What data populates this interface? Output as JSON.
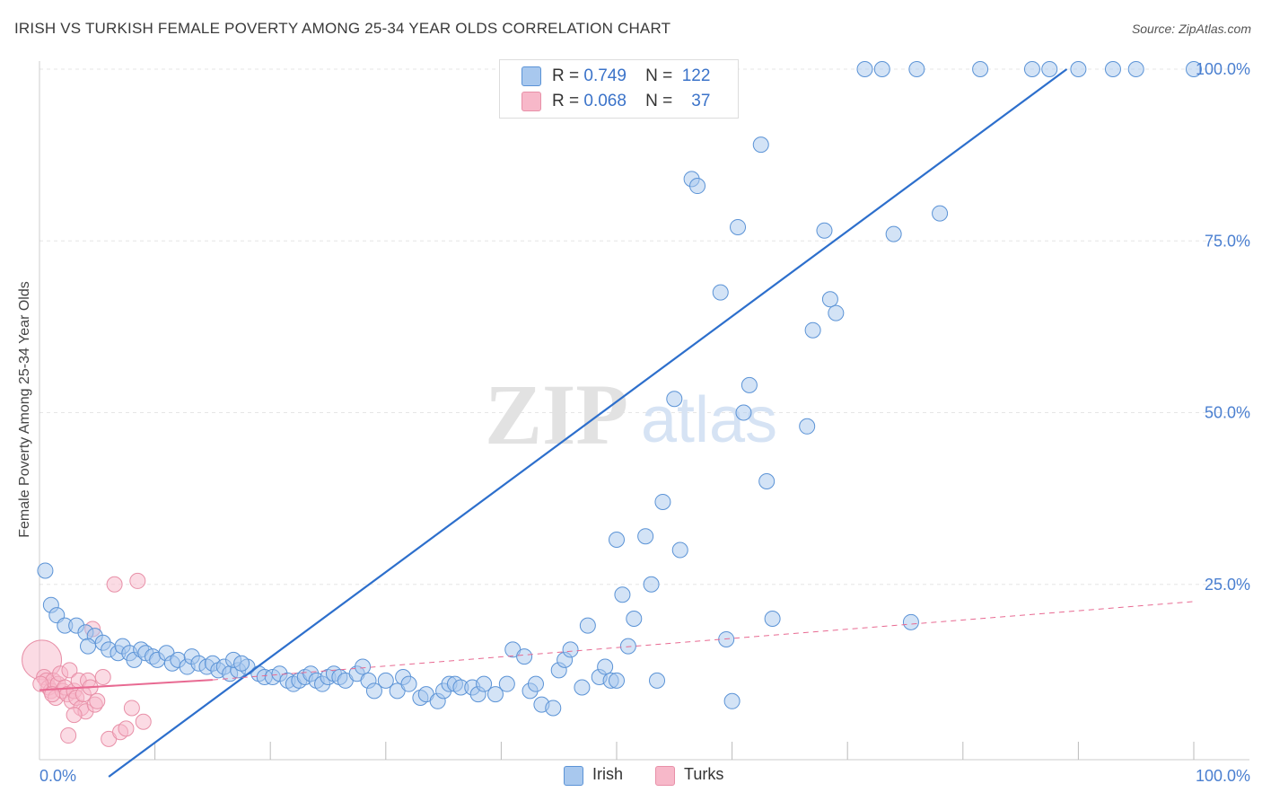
{
  "header": {
    "title": "IRISH VS TURKISH FEMALE POVERTY AMONG 25-34 YEAR OLDS CORRELATION CHART",
    "source": "Source: ZipAtlas.com"
  },
  "watermark": {
    "zip": "ZIP",
    "atlas": "atlas"
  },
  "legend": {
    "rows": [
      {
        "r_label": "R =",
        "r_value": "0.749",
        "n_label": "N =",
        "n_value": "122"
      },
      {
        "r_label": "R =",
        "r_value": "0.068",
        "n_label": "N =",
        "n_value": "37"
      }
    ]
  },
  "bottom_legend": {
    "irish": "Irish",
    "turks": "Turks"
  },
  "colors": {
    "irish_fill": "#a8c8ee",
    "irish_stroke": "#5b93d6",
    "irish_line": "#2d6fcc",
    "turks_fill": "#f7b8c9",
    "turks_stroke": "#e890a8",
    "turks_line": "#e86a92",
    "axis_text": "#4a7fd0",
    "grid": "#e6e6e6"
  },
  "chart_data": {
    "type": "scatter",
    "title": "IRISH VS TURKISH FEMALE POVERTY AMONG 25-34 YEAR OLDS CORRELATION CHART",
    "xlabel": "",
    "ylabel": "Female Poverty Among 25-34 Year Olds",
    "xlim": [
      0,
      100
    ],
    "ylim": [
      0,
      102
    ],
    "x_tick_labels": [
      {
        "value": 0,
        "label": "0.0%"
      },
      {
        "value": 100,
        "label": "100.0%"
      }
    ],
    "y_tick_labels": [
      {
        "value": 25,
        "label": "25.0%"
      },
      {
        "value": 50,
        "label": "50.0%"
      },
      {
        "value": 75,
        "label": "75.0%"
      },
      {
        "value": 100,
        "label": "100.0%"
      }
    ],
    "x_minor_ticks": [
      10,
      20,
      30,
      40,
      50,
      60,
      70,
      80,
      90,
      100
    ],
    "grid": true,
    "series": [
      {
        "name": "Irish",
        "r": 0.749,
        "n": 122,
        "trend": {
          "x": [
            6.0,
            89.0
          ],
          "y": [
            -3.0,
            100.0
          ],
          "style": "solid"
        },
        "points": [
          [
            0.5,
            27.0
          ],
          [
            1.0,
            22.0
          ],
          [
            1.5,
            20.5
          ],
          [
            2.2,
            19.0
          ],
          [
            3.2,
            19.0
          ],
          [
            4.0,
            18.0
          ],
          [
            4.8,
            17.5
          ],
          [
            4.2,
            16.0
          ],
          [
            5.5,
            16.5
          ],
          [
            6.0,
            15.5
          ],
          [
            6.8,
            15.0
          ],
          [
            7.2,
            16.0
          ],
          [
            7.8,
            15.0
          ],
          [
            8.2,
            14.0
          ],
          [
            8.8,
            15.5
          ],
          [
            9.2,
            15.0
          ],
          [
            9.8,
            14.5
          ],
          [
            10.2,
            14.0
          ],
          [
            11.0,
            15.0
          ],
          [
            11.5,
            13.5
          ],
          [
            12.0,
            14.0
          ],
          [
            12.8,
            13.0
          ],
          [
            13.2,
            14.5
          ],
          [
            13.8,
            13.5
          ],
          [
            14.5,
            13.0
          ],
          [
            15.0,
            13.5
          ],
          [
            15.5,
            12.5
          ],
          [
            16.0,
            13.0
          ],
          [
            16.5,
            12.0
          ],
          [
            17.2,
            12.5
          ],
          [
            18.0,
            13.0
          ],
          [
            16.8,
            14.0
          ],
          [
            17.5,
            13.5
          ],
          [
            19.0,
            12.0
          ],
          [
            19.5,
            11.5
          ],
          [
            20.2,
            11.5
          ],
          [
            20.8,
            12.0
          ],
          [
            21.5,
            11.0
          ],
          [
            22.0,
            10.5
          ],
          [
            22.5,
            11.0
          ],
          [
            23.0,
            11.5
          ],
          [
            23.5,
            12.0
          ],
          [
            24.0,
            11.0
          ],
          [
            24.5,
            10.5
          ],
          [
            25.0,
            11.5
          ],
          [
            25.5,
            12.0
          ],
          [
            26.0,
            11.5
          ],
          [
            26.5,
            11.0
          ],
          [
            27.5,
            12.0
          ],
          [
            28.0,
            13.0
          ],
          [
            28.5,
            11.0
          ],
          [
            29.0,
            9.5
          ],
          [
            30.0,
            11.0
          ],
          [
            31.0,
            9.5
          ],
          [
            31.5,
            11.5
          ],
          [
            32.0,
            10.5
          ],
          [
            33.0,
            8.5
          ],
          [
            33.5,
            9.0
          ],
          [
            34.5,
            8.0
          ],
          [
            35.0,
            9.5
          ],
          [
            35.5,
            10.5
          ],
          [
            36.0,
            10.5
          ],
          [
            36.5,
            10.0
          ],
          [
            37.5,
            10.0
          ],
          [
            38.0,
            9.0
          ],
          [
            38.5,
            10.5
          ],
          [
            39.5,
            9.0
          ],
          [
            40.5,
            10.5
          ],
          [
            41.0,
            15.5
          ],
          [
            42.0,
            14.5
          ],
          [
            42.5,
            9.5
          ],
          [
            43.0,
            10.5
          ],
          [
            43.5,
            7.5
          ],
          [
            44.5,
            7.0
          ],
          [
            45.0,
            12.5
          ],
          [
            45.5,
            14.0
          ],
          [
            46.0,
            15.5
          ],
          [
            47.0,
            10.0
          ],
          [
            47.5,
            19.0
          ],
          [
            48.5,
            11.5
          ],
          [
            49.0,
            13.0
          ],
          [
            49.5,
            11.0
          ],
          [
            50.0,
            11.0
          ],
          [
            50.0,
            31.5
          ],
          [
            50.5,
            23.5
          ],
          [
            51.0,
            16.0
          ],
          [
            51.5,
            20.0
          ],
          [
            52.5,
            32.0
          ],
          [
            53.0,
            25.0
          ],
          [
            53.5,
            11.0
          ],
          [
            54.0,
            37.0
          ],
          [
            55.0,
            52.0
          ],
          [
            55.5,
            30.0
          ],
          [
            56.5,
            84.0
          ],
          [
            57.0,
            83.0
          ],
          [
            59.0,
            67.5
          ],
          [
            59.5,
            17.0
          ],
          [
            60.0,
            8.0
          ],
          [
            60.5,
            77.0
          ],
          [
            61.0,
            50.0
          ],
          [
            61.5,
            54.0
          ],
          [
            62.5,
            89.0
          ],
          [
            63.0,
            40.0
          ],
          [
            63.5,
            20.0
          ],
          [
            66.5,
            48.0
          ],
          [
            67.0,
            62.0
          ],
          [
            68.0,
            76.5
          ],
          [
            68.5,
            66.5
          ],
          [
            69.0,
            64.5
          ],
          [
            74.0,
            76.0
          ],
          [
            75.5,
            19.5
          ],
          [
            76.0,
            100.0
          ],
          [
            71.5,
            100.0
          ],
          [
            73.0,
            100.0
          ],
          [
            78.0,
            79.0
          ],
          [
            81.5,
            100.0
          ],
          [
            86.0,
            100.0
          ],
          [
            87.5,
            100.0
          ],
          [
            90.0,
            100.0
          ],
          [
            93.0,
            100.0
          ],
          [
            95.0,
            100.0
          ],
          [
            100.0,
            100.0
          ]
        ]
      },
      {
        "name": "Turks",
        "r": 0.068,
        "n": 37,
        "trend": {
          "x": [
            0,
            15.0
          ],
          "y": [
            9.6,
            11.1
          ],
          "style": "solid"
        },
        "trend_extension": {
          "x": [
            15.0,
            100.0
          ],
          "y": [
            11.1,
            22.5
          ],
          "style": "dashed"
        },
        "points": [
          [
            0.2,
            14.0
          ],
          [
            0.4,
            11.5
          ],
          [
            0.6,
            11.0
          ],
          [
            0.8,
            10.0
          ],
          [
            1.0,
            9.5
          ],
          [
            1.2,
            11.0
          ],
          [
            1.4,
            8.5
          ],
          [
            1.6,
            10.5
          ],
          [
            1.8,
            12.0
          ],
          [
            2.0,
            9.5
          ],
          [
            2.2,
            10.0
          ],
          [
            2.4,
            9.0
          ],
          [
            2.6,
            12.5
          ],
          [
            2.8,
            8.0
          ],
          [
            3.0,
            9.5
          ],
          [
            3.2,
            8.5
          ],
          [
            3.4,
            11.0
          ],
          [
            3.6,
            7.0
          ],
          [
            3.8,
            9.0
          ],
          [
            4.0,
            6.5
          ],
          [
            4.2,
            11.0
          ],
          [
            4.4,
            10.0
          ],
          [
            4.6,
            18.5
          ],
          [
            4.8,
            7.5
          ],
          [
            5.0,
            8.0
          ],
          [
            5.5,
            11.5
          ],
          [
            6.0,
            2.5
          ],
          [
            6.5,
            25.0
          ],
          [
            7.0,
            3.5
          ],
          [
            7.5,
            4.0
          ],
          [
            8.0,
            7.0
          ],
          [
            8.5,
            25.5
          ],
          [
            9.0,
            5.0
          ],
          [
            2.5,
            3.0
          ],
          [
            1.1,
            9.0
          ],
          [
            3.0,
            6.0
          ],
          [
            0.1,
            10.5
          ]
        ]
      }
    ]
  }
}
